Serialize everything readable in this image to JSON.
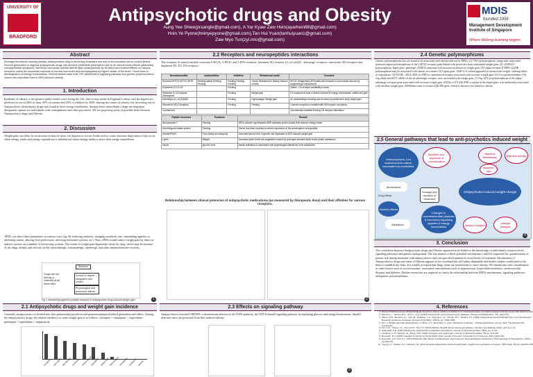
{
  "header": {
    "title": "Antipsychotic drugs and Obesity",
    "authors_line1": "Aung Yee Shwe(prsangle@gmail.com), A Yar Kyaw Zaw Hein(ayarhein88@gmail.com)",
    "authors_line2": "Hnin Ye Pyone(hninyepyone@gmail.com),Tan Hui Yuan(tanhuiyuan1@gmail.com)",
    "authors_line3": "Zaw Myo Tun(zyi.mio@gmail.com)",
    "left_logo_top": "UNIVERSITY OF",
    "left_logo_bottom": "BRADFORD",
    "right_logo_name": "MDIS",
    "right_logo_founded": "founded 1956",
    "right_logo_inst": "Management Development Institute of Singapore",
    "right_logo_slogan": "Where lifelong learning begins"
  },
  "sections": {
    "abstract": "Abstract",
    "introduction": "1. Introduction",
    "discussion": "2. Discussion",
    "antipsychotic": "2.1 Antipsychotic drugs and weight gain incidence",
    "receptors": "2.2 Receptors and neuropeptides interactions",
    "signaling": "2.3 Effects on signaling pathway",
    "genetic": "2.4 Genetic polymorphisms",
    "general": "2.5 General pathways that lead to anti-psychotics induced weight gain",
    "conclusion": "3. Conclusion",
    "references": "4. References"
  },
  "text": {
    "abstract": "Amongst the factors causing obesity, antipsychotics drug is becoming important one due to its increased use to control illness. Second generation or atypical antipsychotic drugs has become preferable prescription due to its reduced side effects particularly extrapyramidal symptoms. But those can cause obesity and its fatal consequences by its direct and indirect effects on various receptors cause the abnormal response to normal hormones and neuropeptides by higher center of the brain. Those lead to disintegration of energy homeostasis. Recent studies state that TGF-beta/SMAD3 signaling pathway and genetic polymorphisms comes into important roles in APD-induced obesity.",
    "introduction": "Epidemic of obesity is the greatest public health crisis facing the UK. One in four adults in England is obese, and the figures are predicted to rise to 60% of men, 50% of women and 25% of children by 2050. Among the causes of obesity, the increasing use of Antipsychotic (neuroleptic) drugs was found to have strong correlations. Antipsychotic (neuroleptic) drugs are important therapeutic options for individuals with schizophrenia and other psychoses. We are proposing study of possible links between Antipsychotic drugs and Obesity.",
    "discussion": "Weight gain can either be an increase in muscle mass, fat deposits or excess fluids such as water. Increase deposition of fats occur when energy intake and energy expenditure is imbalanced where energy intake is more than energy expenditure.",
    "discussion2": "APDs can affect these parameters in various ways (eg. By inducing sedation, changing metabolic rate, stimulating appetite or inhibiting satiety, altering food preferences, affecting hormonal systems, etc). Thus, APDs would induce weight gain by direct or indirect actions on a number of interacting systems. The extent of weight gain apparently varies by drug, which may be because of the drugs affinity and activity on the serotoninergic, histaminergic, adrenergic and other neurotransmitter systems.",
    "fig1_caption": "Fig 1 Interacting systems possibly involved in antipsychotic drug-induced weight gain",
    "antipsychotic": "Generally antipsychotics is divided into first generation(typical)/second generation(atypical)/third generation and others. Among the antipsychotics drugs, the relative tendency to cause weight gain is as follows: clozapine > olanzapine > risperidone> quetiapine > ziprasidone > aripiprazole",
    "receptors": "The receptors of interest include serotonin 5-HT2A, 5-HT2C and 5-HT6 receptors, histamine H1 receptor, α1, α2 and β3 - adrenergic receptors, muscarinic M3 receptors and dopamine D1, D2, D3 receptors.",
    "table_caption": "Relationship between clinical potencies of antipsychotic medications (as measured by therapeutic dose) and their affinities for various receptors.",
    "signaling": "Antipsychotics activated SMAD3, a downstream effector of the TGFb pathway, the TGF-b/Smad3 signaling pathway in regulating glucose and energy homeostasis. Smad3-deficient mice are protected from diet-induced obesity.",
    "genetic": "Genetic polymorphisms that are found to be associated with obesity and use of APDs: (1) 759 T polymorphism, along with some other promoter region polymorphisms of the 5-HT2C receptor gene linked with protection from substantial weight gain. (2) -2548A/G polymorphism, leptin gene, genotype -2548GG associate with increase incidence of weight gain. (3) Leptin receptor (LEPR) Q223R polymorphism may be associated with obesity in women. (4) Leptin gene -2548 G/A variant appeared to increase the weight - altering effect of risperidone. (5) FAAH c.385A:385C in SNP for cannabinoid receptor associated with increase weight gain. (6) Two polymorphisms (-84 Arg allele and 825 T allele) of the b3 adrenergic receptor were associated with weight gain. (7) Arg 347Cys polymorphism of the alpha - adrenergic receptor gene associated with increase weight gain. (8)The rs 473 426 SNP, a variant in the leptin gene, was moderately associated with medium weight gain. (9)Melanocortin-4 receptor (MC4R) gene, which is known to be linked to obesity.",
    "conclusion": "The correlation between Antipsychotic drugs and Obesity appeared to be linked to the knowledge of individual's receptor levels, signaling pathways and genetic background. The elucidation of these potential mechanisms could be important for quantification of patient risk during treatment with antipsychotics and can spur development of novel forms of treatment. Mechanisms of Antipsychotics drugs and onset of Obesity appears to be correlated but still rather disputable and further studies would need to be done to establish the links. It is widely accepted that drugs alone are insufficient to cause obesity. We should take into consideration of other factors such as socioeconomic, associated comorbidities such as hypertension, hypercholesterolemia, cardiovascular diseases and diabetes. Further researches are required to clarify the relationship between APD's mechanisms, signaling pathways and genetic polymorphisms."
  },
  "fig1": {
    "top": "Behavior",
    "left": "Drugs can act directly or indirectly at all these sites",
    "mid1": "Central or Higher Integration and control",
    "mid2": "Physiological and autonomic effects"
  },
  "table_headers": [
    "Neurotransmitter",
    "Autoinhibition",
    "Inhibition",
    "Behavioural model",
    "Comment"
  ],
  "table_rows": [
    [
      "Serotonin 5HT2A 5HT2C 5HT6",
      "Feeding satiety Feeding Feeding",
      "Feeding Feeding Feeding",
      "Obese Resistance to dietary induced obesity",
      "5HT2C antagonists (APD)attenuate reduction in food intake induced by dopaminergic mechanisms"
    ],
    [
      "Dopamine D1 D2 D3",
      "",
      "Feeding",
      "",
      "Obese - D2 receptor availability is lower"
    ],
    [
      "Histamine H1 (Clozapine, Olanzapine)",
      "",
      "Feeding",
      "Weight gain",
      "H1 receptors at area of brains involved in energy homeostasis, satiety and gain"
    ],
    [
      "Adrenergic α1, α2 β1β2β3",
      "",
      "Feeding",
      "Hyperphagia, Weight gain",
      "α1-noradrenergic blocking was increase proportional to body weight gain"
    ],
    [
      "Muscarinic M3 (Clozapine)",
      "",
      "Feeding",
      "Feeding",
      "Lowered receptors correlated with M3 receptor occupancy"
    ],
    [
      "Cannabinoid",
      "",
      "",
      "",
      "Cannabinoid-mediated feeding CB receptor stimulation"
    ]
  ],
  "table2_headers": [
    "Peptide hormones",
    "Functions",
    "Remark"
  ],
  "table2_rows": [
    [
      "Neuropeptide Y",
      "Feeding",
      "APDs activate hypothalamic AMP-activated protein kinase that reduces energy intake"
    ],
    [
      "Orexin/Agouti related protein",
      "Feeding",
      "Orexin has been reported to reduce expression of the anorexigenic neuropeptide"
    ],
    [
      "Ghrelin/PSMC",
      "Food intake and adiposity",
      "Increased serum level of ghrelin has implicated in APD-induced weight gain"
    ],
    [
      "Leptin",
      "Weight",
      "Increased leptin levels are suggested caused by prolonged elevated leptin levels (leptin resistance)"
    ],
    [
      "Insulin",
      "glucose level",
      "Insulin resistance is associated with physiological alterations in fat metabolism"
    ]
  ],
  "bar_chart": {
    "type": "bar",
    "categories": [
      "clozapine",
      "olanzapine",
      "thioridazine",
      "sertindole",
      "chlorpromazine",
      "risperidone",
      "haloperidol",
      "fluphenazine",
      "ziprasidone",
      "molindone",
      "placebo"
    ],
    "values": [
      4.45,
      4.15,
      3.19,
      2.92,
      2.58,
      2.1,
      1.08,
      0.43,
      0.04,
      -0.39,
      -0.74
    ]
  },
  "diagram": {
    "center": "Antipsychotics-induced weight change",
    "nodes": [
      "Unemployment, Low socioeconomic status, associated co-morbidities",
      "Baseline anti-psychotic & comedication",
      "Baseline Metabolism",
      "Baseline activity",
      "Baseline diet",
      "Moderators",
      "Drug effects",
      "Dosage and duration of treatment",
      "Genetic effects",
      "Changes in neurotransmitter peptides & hormones regulating appetite & energy homeostasis",
      "Mediation",
      "Dietary changes",
      "Lifestyle changes"
    ]
  },
  "references": [
    "Nature Publishing Group (2012) Metabolic Syndrome eNews. [Online]. Available from: http://www.nature.com/clpt/newsletter.html [Accessed 10th February 2013]",
    "Tarricone, I., Casoni, B.G., Neri,C., et al. (2010) Antipsychotic-induced weight gain; Diabetes, Obesity and Metabolism. 7(4), pp474-87.",
    "Allison, D.B., Mentore, J.L., Heo, M., Chandler, L.P., Cappelleri, J.C., Infante, M.C., Weiden, P.J. (1999) Antipsychotic-induced Weight Gain: A Comprehensive Research Synthesis. American Journal of Psychiatry. 156(11), pp. 1686-1696.",
    "Kim, J. Weight gain with antipsychotics. In: Bray, G.A., Bouchard, C. (eds.) Handbook of Obesity - Clinical Applications. 3rd ed. USA: The McGraw-Hill Companies.",
    "Tan, C.H., Chong, Y.C., Tan, E.H.P., Tan, H.Y. (2013) Striking 'Smad3' about obesity and diabetes. Nutrition and Diabetes.3(10), e23, pp.1-13.",
    "Saeleeklik, S.M. (2007) Existing the antipsychotic metabolism atmosphere. Journal of Clinical Psychiatry. 68(1), pp. 17-19.",
    "Lindstrom, L.H., Persson, E., Wong, S.M. (1994) Clozapine and weight gain. Journal of Clinical Psychiatry. 55, pp. 164-168.",
    "Bernstein, M.J. (1987) Induction of obesity by psychotropic drugs. Annals of the New York Academy of Sciences. 499, pp203-215.",
    "Reynolds, G.P., Kirk, S.L. (2010) Metabolic side effects of antipsychotic drug treatment: pharmacological mechanisms. Pharmacology & Therapeutics. 125(1), pp.169-179.",
    "Young, L.L., Stalder, R.C., Mitchell, J.E. (2011) Atypical antipsychotic-induced weight gain: insights into mechanisms of action. CNS drugs. 25(12), pp1035-1059."
  ],
  "colors": {
    "banner": "#5b1d48",
    "section": "#e7e3ea",
    "diagram_bg": "#d7e6f2",
    "blue_node": "#2a5ea8"
  }
}
